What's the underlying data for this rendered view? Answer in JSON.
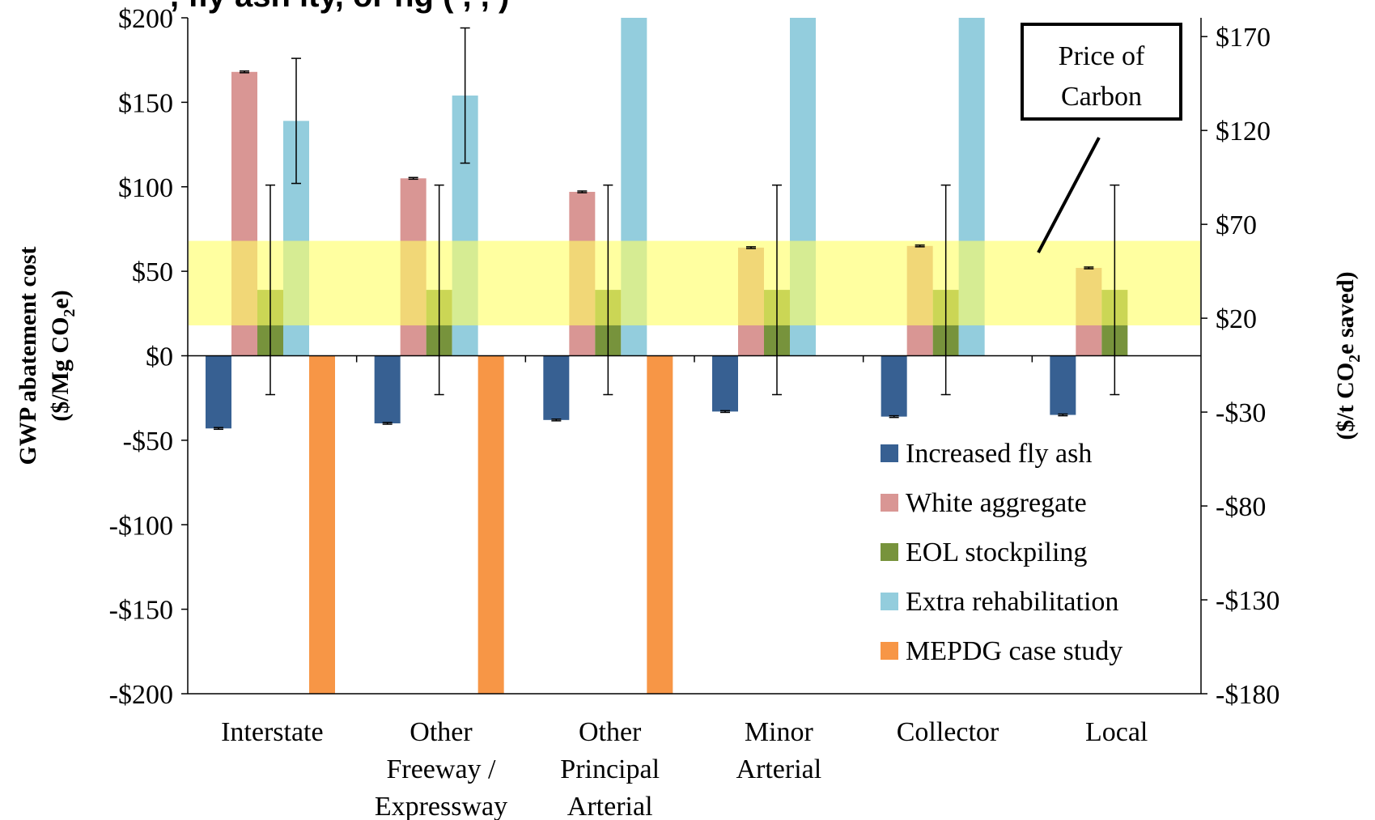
{
  "chart_data": {
    "type": "bar",
    "title_fragment": ", fly ash                          ity, or                                     ng (            ,           ,          )",
    "categories": [
      [
        "Interstate"
      ],
      [
        "Other",
        "Freeway /",
        "Expressway"
      ],
      [
        "Other",
        "Principal",
        "Arterial"
      ],
      [
        "Minor",
        "Arterial"
      ],
      [
        "Collector"
      ],
      [
        "Local"
      ]
    ],
    "ylim": [
      -200,
      200
    ],
    "y_ticks": [
      -200,
      -150,
      -100,
      -50,
      0,
      50,
      100,
      150,
      200
    ],
    "y_tick_labels": [
      "-$200",
      "-$150",
      "-$100",
      "-$50",
      "$0",
      "$50",
      "$100",
      "$150",
      "$200"
    ],
    "ylabel_lines": [
      "GWP abatement cost",
      "($/Mg CO",
      "2",
      "e)"
    ],
    "y2lim": [
      -180,
      180
    ],
    "y2_ticks": [
      170,
      120,
      70,
      20,
      -30,
      -80,
      -130,
      -180
    ],
    "y2_tick_labels": [
      "$170",
      "$120",
      "$70",
      "$20",
      "-$30",
      "-$80",
      "-$130",
      "-$180"
    ],
    "y2label_parts": [
      "($/t CO",
      "2",
      "e saved)"
    ],
    "series": [
      {
        "name": "Increased fly ash",
        "color": "#376092",
        "values": [
          -43,
          -40,
          -38,
          -33,
          -36,
          -35
        ],
        "error": [
          0.5,
          0.5,
          0.5,
          0.5,
          0.5,
          0.5
        ]
      },
      {
        "name": "White aggregate",
        "color": "#d99694",
        "values": [
          168,
          105,
          97,
          64,
          65,
          52
        ],
        "error": [
          0.5,
          0.5,
          0.5,
          0.5,
          0.5,
          0.5
        ]
      },
      {
        "name": "EOL stockpiling",
        "color": "#77933c",
        "values": [
          39,
          39,
          39,
          39,
          39,
          39
        ],
        "error": [
          62,
          62,
          62,
          62,
          62,
          62
        ]
      },
      {
        "name": "Extra rehabilitation",
        "color": "#93cddd",
        "values": [
          139,
          154,
          200,
          200,
          200,
          0
        ],
        "error": [
          37,
          40,
          0,
          0,
          0,
          0
        ]
      },
      {
        "name": "MEPDG case study",
        "color": "#f79646",
        "values": [
          -200,
          -200,
          -200,
          null,
          null,
          null
        ],
        "error": [
          0,
          0,
          0,
          0,
          0,
          0
        ]
      }
    ],
    "band": {
      "label_lines": [
        "Price of",
        "Carbon"
      ],
      "from": 18,
      "to": 68,
      "color": "#ffff66",
      "opacity": 0.62
    },
    "legend_position": "bottom-right",
    "grid": false
  }
}
